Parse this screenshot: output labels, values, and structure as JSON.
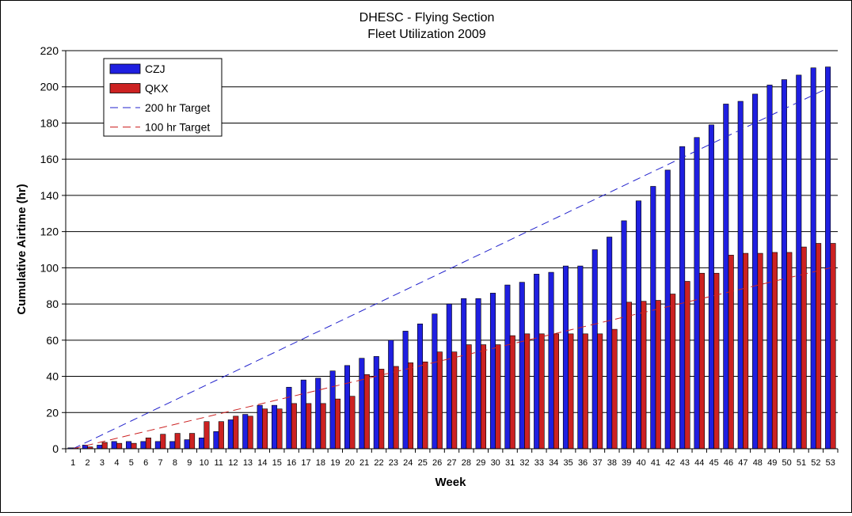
{
  "chart_data": {
    "type": "bar",
    "title": "DHESC - Flying Section",
    "subtitle": "Fleet Utilization 2009",
    "xlabel": "Week",
    "ylabel": "Cumulative Airtime (hr)",
    "ylim": [
      0,
      220
    ],
    "yticks": [
      0,
      20,
      40,
      60,
      80,
      100,
      120,
      140,
      160,
      180,
      200,
      220
    ],
    "grid": true,
    "legend_position": "top-left",
    "categories": [
      "1",
      "2",
      "3",
      "4",
      "5",
      "6",
      "7",
      "8",
      "9",
      "10",
      "11",
      "12",
      "13",
      "14",
      "15",
      "16",
      "17",
      "18",
      "19",
      "20",
      "21",
      "22",
      "23",
      "24",
      "25",
      "26",
      "27",
      "28",
      "29",
      "30",
      "31",
      "32",
      "33",
      "34",
      "35",
      "36",
      "37",
      "38",
      "39",
      "40",
      "41",
      "42",
      "43",
      "44",
      "45",
      "46",
      "47",
      "48",
      "49",
      "50",
      "51",
      "52",
      "53"
    ],
    "series": [
      {
        "name": "CZJ",
        "kind": "bar",
        "color": "#1f1fe0",
        "values": [
          0.5,
          2,
          2,
          4,
          4,
          4,
          4,
          4,
          5,
          6,
          9.5,
          16,
          19,
          24,
          24,
          34,
          38,
          39,
          43,
          46,
          50,
          51,
          60,
          65,
          69,
          74.5,
          80,
          83,
          83,
          86,
          90.5,
          92,
          96.5,
          97.5,
          101,
          101,
          110,
          117,
          126,
          137,
          145,
          154,
          167,
          172,
          179,
          190.5,
          192,
          196,
          201,
          204,
          206.5,
          210.5,
          211
        ]
      },
      {
        "name": "QKX",
        "kind": "bar",
        "color": "#cc2222",
        "values": [
          0.5,
          1,
          3.5,
          3,
          3,
          6,
          8,
          8.5,
          8.5,
          15,
          15,
          18,
          18,
          22,
          22,
          25,
          25,
          25,
          27.5,
          29,
          41,
          44,
          45.5,
          47.5,
          48,
          53.5,
          53.5,
          57.5,
          57.5,
          57.5,
          62.5,
          63.5,
          63.5,
          63.5,
          63.5,
          63.5,
          63.5,
          66,
          81,
          81.5,
          82,
          85.5,
          92.5,
          97,
          97,
          107,
          108,
          108,
          108.5,
          108.5,
          111.5,
          113.5,
          113.5
        ]
      },
      {
        "name": "200 hr Target",
        "kind": "dashed-line",
        "color": "#2222cc",
        "x": [
          "1",
          "53"
        ],
        "values": [
          0,
          200
        ]
      },
      {
        "name": "100 hr Target",
        "kind": "dashed-line",
        "color": "#cc2222",
        "x": [
          "1",
          "53"
        ],
        "values": [
          0,
          100
        ]
      }
    ]
  }
}
